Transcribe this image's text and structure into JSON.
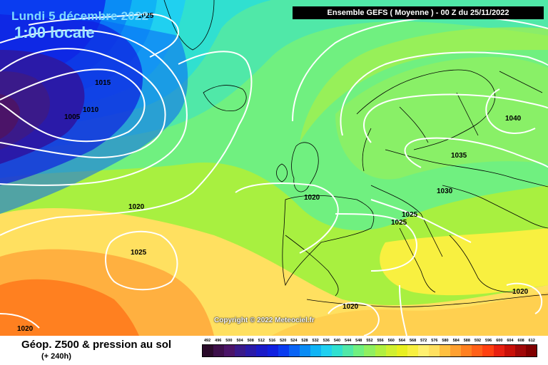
{
  "header": {
    "date": "Lundi 5 décembre 2022",
    "local_time": "1:00 locale",
    "run_info": "Ensemble GEFS  ( Moyenne )  - 00 Z du 25/11/2022"
  },
  "map": {
    "isobar_labels": [
      "1015",
      "1010",
      "1005",
      "1020",
      "1025",
      "1020",
      "1025",
      "1025",
      "1030",
      "1035",
      "1040",
      "1020",
      "1020",
      "1020",
      "1025"
    ],
    "copyright": "Copyright © 2022 Meteociel.fr"
  },
  "footer": {
    "title": "Géop. Z500 & pression au sol",
    "subtitle": "(+ 240h)"
  },
  "scale": {
    "labels": [
      "492",
      "496",
      "500",
      "504",
      "508",
      "512",
      "516",
      "520",
      "524",
      "528",
      "532",
      "536",
      "540",
      "544",
      "548",
      "552",
      "556",
      "560",
      "564",
      "568",
      "572",
      "576",
      "580",
      "584",
      "588",
      "592",
      "596",
      "600",
      "604",
      "608",
      "612"
    ],
    "colors": [
      "#2a0a2a",
      "#3d0f4a",
      "#4b1468",
      "#3a1a8a",
      "#2a1aa8",
      "#1a1ac8",
      "#1020e0",
      "#0a3cf0",
      "#0a64f5",
      "#0a8cf5",
      "#10b4f5",
      "#20d0f0",
      "#30e0d0",
      "#50e8a8",
      "#70f080",
      "#90f060",
      "#b0f040",
      "#d0f030",
      "#e8f020",
      "#f8f040",
      "#fff070",
      "#ffe060",
      "#ffc040",
      "#ffa030",
      "#ff8020",
      "#ff6018",
      "#ff4010",
      "#e82010",
      "#c81008",
      "#a00808",
      "#800000"
    ]
  }
}
